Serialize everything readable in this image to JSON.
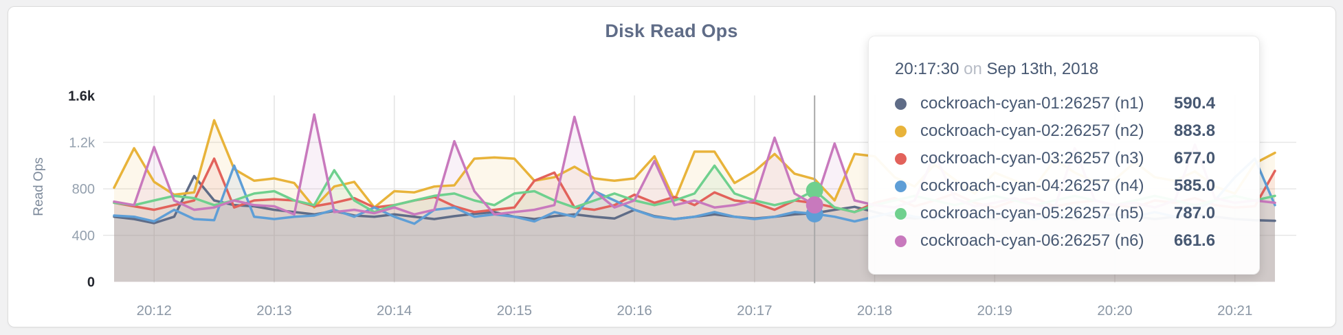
{
  "page": {
    "background": "#f1f1f2",
    "card_background": "#ffffff"
  },
  "chart": {
    "title": "Disk Read Ops",
    "y_axis_label": "Read Ops"
  },
  "chart_data": {
    "type": "line",
    "title": "Disk Read Ops",
    "ylabel": "Read Ops",
    "ylim": [
      0,
      1600
    ],
    "grid": true,
    "x_start": "20:11:40",
    "x_step_seconds": 10,
    "x_ticks": [
      "20:12",
      "20:13",
      "20:14",
      "20:15",
      "20:16",
      "20:17",
      "20:18",
      "20:19",
      "20:20",
      "20:21"
    ],
    "y_ticks": [
      {
        "value": 0,
        "label": "0",
        "strong": true
      },
      {
        "value": 400,
        "label": "400",
        "strong": false
      },
      {
        "value": 800,
        "label": "800",
        "strong": false
      },
      {
        "value": 1200,
        "label": "1.2k",
        "strong": false
      },
      {
        "value": 1600,
        "label": "1.6k",
        "strong": true
      }
    ],
    "series": [
      {
        "name": "cockroach-cyan-01:26257 (n1)",
        "node": "n1",
        "color": "#5f6c87",
        "values": [
          560,
          540,
          505,
          560,
          910,
          700,
          660,
          650,
          620,
          600,
          580,
          610,
          570,
          560,
          580,
          560,
          540,
          565,
          585,
          600,
          560,
          540,
          565,
          580,
          560,
          545,
          620,
          565,
          540,
          560,
          580,
          560,
          545,
          560,
          580,
          590.4,
          620,
          645,
          600,
          560,
          545,
          560,
          580,
          560,
          540,
          560,
          580,
          560,
          540,
          560,
          580,
          560,
          540,
          560,
          580,
          560,
          540,
          530,
          525
        ]
      },
      {
        "name": "cockroach-cyan-02:26257 (n2)",
        "node": "n2",
        "color": "#e8b33a",
        "values": [
          810,
          1150,
          860,
          750,
          770,
          1390,
          970,
          870,
          890,
          850,
          640,
          820,
          860,
          640,
          780,
          770,
          820,
          830,
          1060,
          1070,
          1060,
          870,
          900,
          990,
          890,
          870,
          890,
          1080,
          700,
          1120,
          1120,
          850,
          950,
          1100,
          930,
          883.8,
          700,
          1100,
          1080,
          900,
          820,
          1010,
          880,
          760,
          940,
          870,
          820,
          1050,
          940,
          860,
          880,
          1030,
          900,
          870,
          950,
          820,
          760,
          1020,
          1110
        ]
      },
      {
        "name": "cockroach-cyan-03:26257 (n3)",
        "node": "n3",
        "color": "#e2625b",
        "values": [
          680,
          650,
          620,
          660,
          700,
          1060,
          640,
          700,
          710,
          700,
          650,
          680,
          720,
          640,
          660,
          700,
          730,
          650,
          600,
          620,
          640,
          870,
          940,
          640,
          620,
          660,
          750,
          680,
          730,
          660,
          770,
          700,
          680,
          620,
          700,
          677,
          640,
          600,
          680,
          720,
          650,
          700,
          760,
          680,
          640,
          700,
          720,
          650,
          680,
          700,
          660,
          640,
          700,
          680,
          720,
          660,
          640,
          650,
          955
        ]
      },
      {
        "name": "cockroach-cyan-04:26257 (n4)",
        "node": "n4",
        "color": "#5e9ed6",
        "values": [
          570,
          560,
          520,
          620,
          540,
          530,
          1000,
          560,
          540,
          560,
          570,
          620,
          560,
          640,
          560,
          500,
          620,
          640,
          560,
          580,
          560,
          520,
          600,
          560,
          780,
          700,
          620,
          560,
          540,
          560,
          600,
          560,
          540,
          560,
          600,
          585,
          560,
          520,
          560,
          600,
          560,
          540,
          580,
          560,
          600,
          560,
          540,
          560,
          580,
          560,
          540,
          560,
          600,
          560,
          620,
          700,
          900,
          1060,
          660
        ]
      },
      {
        "name": "cockroach-cyan-05:26257 (n5)",
        "node": "n5",
        "color": "#6fd08e",
        "values": [
          680,
          660,
          700,
          740,
          720,
          660,
          700,
          760,
          780,
          700,
          660,
          960,
          700,
          600,
          660,
          700,
          740,
          760,
          700,
          660,
          760,
          780,
          700,
          640,
          700,
          760,
          700,
          660,
          700,
          760,
          1000,
          760,
          700,
          660,
          700,
          787,
          640,
          600,
          660,
          700,
          740,
          700,
          660,
          700,
          740,
          700,
          660,
          700,
          740,
          700,
          660,
          700,
          740,
          700,
          660,
          700,
          740,
          700,
          740
        ]
      },
      {
        "name": "cockroach-cyan-06:26257 (n6)",
        "node": "n6",
        "color": "#c879bd",
        "values": [
          690,
          660,
          1160,
          700,
          620,
          640,
          700,
          660,
          650,
          580,
          1440,
          600,
          620,
          590,
          640,
          580,
          620,
          1210,
          780,
          580,
          600,
          620,
          660,
          1420,
          780,
          640,
          700,
          1040,
          660,
          700,
          640,
          660,
          700,
          1240,
          760,
          661.6,
          1190,
          700,
          660,
          640,
          700,
          1100,
          720,
          650,
          680,
          720,
          660,
          640,
          1150,
          700,
          660,
          680,
          640,
          700,
          1180,
          720,
          680,
          700,
          680
        ]
      }
    ]
  },
  "hover": {
    "time_index": 35,
    "dot_nodes": [
      "n5",
      "n4",
      "n6"
    ],
    "line_color": "#a8a8a8"
  },
  "tooltip": {
    "time": "20:17:30",
    "on_word": "on",
    "date": "Sep 13th, 2018",
    "rows": [
      {
        "node": "n1",
        "color": "#5f6c87",
        "label": "cockroach-cyan-01:26257 (n1)",
        "value": "590.4"
      },
      {
        "node": "n2",
        "color": "#e8b33a",
        "label": "cockroach-cyan-02:26257 (n2)",
        "value": "883.8"
      },
      {
        "node": "n3",
        "color": "#e2625b",
        "label": "cockroach-cyan-03:26257 (n3)",
        "value": "677.0"
      },
      {
        "node": "n4",
        "color": "#5e9ed6",
        "label": "cockroach-cyan-04:26257 (n4)",
        "value": "585.0"
      },
      {
        "node": "n5",
        "color": "#6fd08e",
        "label": "cockroach-cyan-05:26257 (n5)",
        "value": "787.0"
      },
      {
        "node": "n6",
        "color": "#c879bd",
        "label": "cockroach-cyan-06:26257 (n6)",
        "value": "661.6"
      }
    ]
  }
}
